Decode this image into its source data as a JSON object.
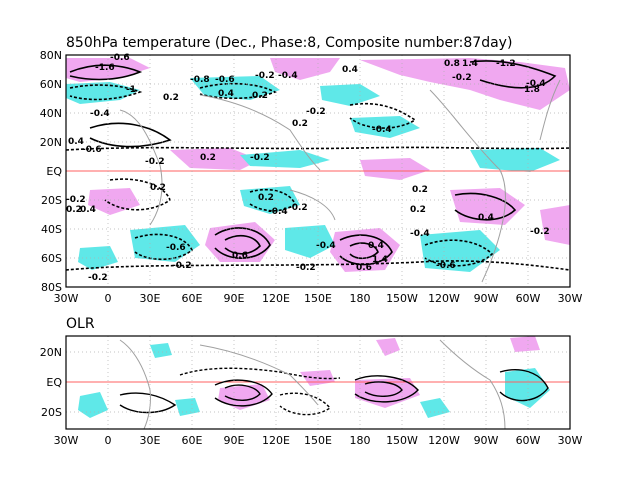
{
  "colors": {
    "positive_shade": "#f0a8f0",
    "negative_shade": "#5fe8e8",
    "coastline": "#a0a0a0",
    "equator_line": "#ff6060",
    "grid": "#b0b0b0"
  },
  "top_panel": {
    "title": "850hPa temperature (Dec., Phase:8, Composite number:87day)",
    "lat_ticks": [
      "80N",
      "60N",
      "40N",
      "20N",
      "EQ",
      "20S",
      "40S",
      "60S",
      "80S"
    ],
    "lon_ticks": [
      "30W",
      "0",
      "30E",
      "60E",
      "90E",
      "120E",
      "150E",
      "180",
      "150W",
      "120W",
      "90W",
      "60W",
      "30W"
    ],
    "contour_labels": [
      "-1.6",
      "-1",
      "-0.6",
      "-0.8",
      "-0.6",
      "-0.2",
      "-0.4",
      "0.2",
      "0.4",
      "0.8",
      "1.4",
      "-1.2",
      "1.8",
      "0.4",
      "-0.2",
      "0.2",
      "-0.2",
      "0.4",
      "-0.6",
      "0.2",
      "-0.2",
      "-0.2",
      "-0.4",
      "0.2",
      "0.2",
      "-0.2",
      "-0.4",
      "0.2",
      "0.4",
      "-0.4",
      "0.2",
      "-0.2",
      "0.6",
      "-0.2",
      "-0.4",
      "-0.4",
      "0.4",
      "-0.6",
      "0.4",
      "-0.2",
      "0.6",
      "-0.2",
      "0.2",
      "1.4",
      "-0.2",
      "0.2",
      "-0.4",
      "-0.6"
    ]
  },
  "bottom_panel": {
    "label": "OLR",
    "lat_ticks": [
      "20N",
      "EQ",
      "20S"
    ],
    "lon_ticks": [
      "30W",
      "0",
      "30E",
      "60E",
      "90E",
      "120E",
      "150E",
      "180",
      "150W",
      "120W",
      "90W",
      "60W",
      "30W"
    ]
  }
}
